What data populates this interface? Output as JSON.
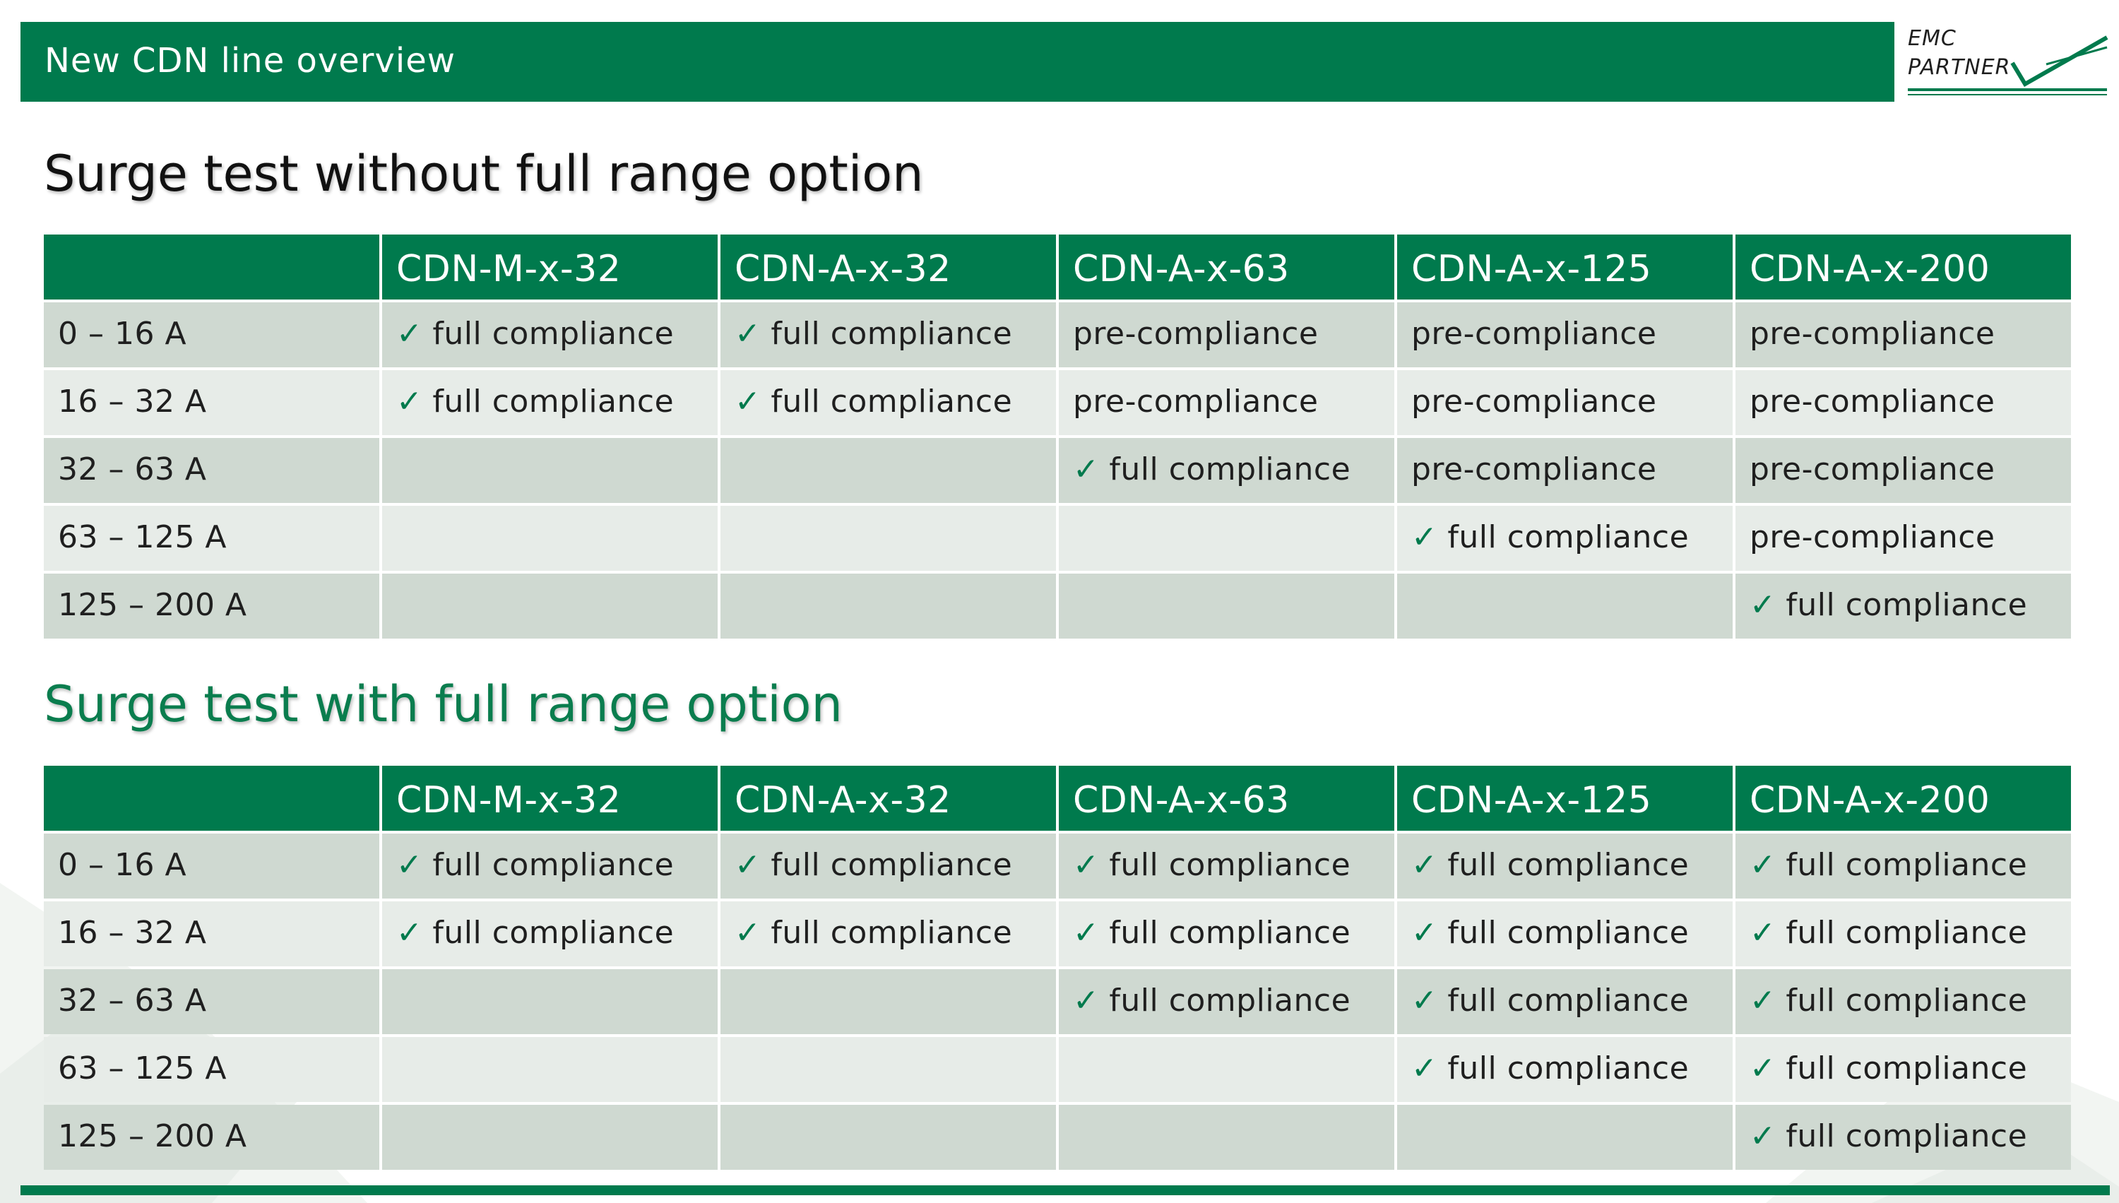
{
  "header": {
    "title": "New CDN line overview"
  },
  "logo": {
    "line1": "EMC",
    "line2": "PARTNER"
  },
  "colors": {
    "brand_green": "#007a4d",
    "row_dark": "#cfd9d1",
    "row_light": "#e7ece8",
    "heading_green": "#0a7d4e"
  },
  "icons": {
    "check": "check-icon"
  },
  "columns": [
    "",
    "CDN-M-x-32",
    "CDN-A-x-32",
    "CDN-A-x-63",
    "CDN-A-x-125",
    "CDN-A-x-200"
  ],
  "sections": [
    {
      "heading": "Surge test without full range option",
      "rows": [
        {
          "range": "0 – 16 A",
          "cells": [
            "full compliance",
            "full compliance",
            "pre-compliance",
            "pre-compliance",
            "pre-compliance"
          ],
          "checks": [
            true,
            true,
            false,
            false,
            false
          ]
        },
        {
          "range": "16 – 32 A",
          "cells": [
            "full compliance",
            "full compliance",
            "pre-compliance",
            "pre-compliance",
            "pre-compliance"
          ],
          "checks": [
            true,
            true,
            false,
            false,
            false
          ]
        },
        {
          "range": "32 – 63 A",
          "cells": [
            "",
            "",
            "full compliance",
            "pre-compliance",
            "pre-compliance"
          ],
          "checks": [
            false,
            false,
            true,
            false,
            false
          ]
        },
        {
          "range": "63 – 125 A",
          "cells": [
            "",
            "",
            "",
            "full compliance",
            "pre-compliance"
          ],
          "checks": [
            false,
            false,
            false,
            true,
            false
          ]
        },
        {
          "range": "125 – 200 A",
          "cells": [
            "",
            "",
            "",
            "",
            "full compliance"
          ],
          "checks": [
            false,
            false,
            false,
            false,
            true
          ]
        }
      ]
    },
    {
      "heading": "Surge test with full range option",
      "rows": [
        {
          "range": "0 – 16 A",
          "cells": [
            "full compliance",
            "full compliance",
            "full compliance",
            "full compliance",
            "full compliance"
          ],
          "checks": [
            true,
            true,
            true,
            true,
            true
          ]
        },
        {
          "range": "16 – 32 A",
          "cells": [
            "full compliance",
            "full compliance",
            "full compliance",
            "full compliance",
            "full compliance"
          ],
          "checks": [
            true,
            true,
            true,
            true,
            true
          ]
        },
        {
          "range": "32 – 63 A",
          "cells": [
            "",
            "",
            "full compliance",
            "full compliance",
            "full compliance"
          ],
          "checks": [
            false,
            false,
            true,
            true,
            true
          ]
        },
        {
          "range": "63 – 125 A",
          "cells": [
            "",
            "",
            "",
            "full compliance",
            "full compliance"
          ],
          "checks": [
            false,
            false,
            false,
            true,
            true
          ]
        },
        {
          "range": "125 – 200 A",
          "cells": [
            "",
            "",
            "",
            "",
            "full compliance"
          ],
          "checks": [
            false,
            false,
            false,
            false,
            true
          ]
        }
      ]
    }
  ]
}
